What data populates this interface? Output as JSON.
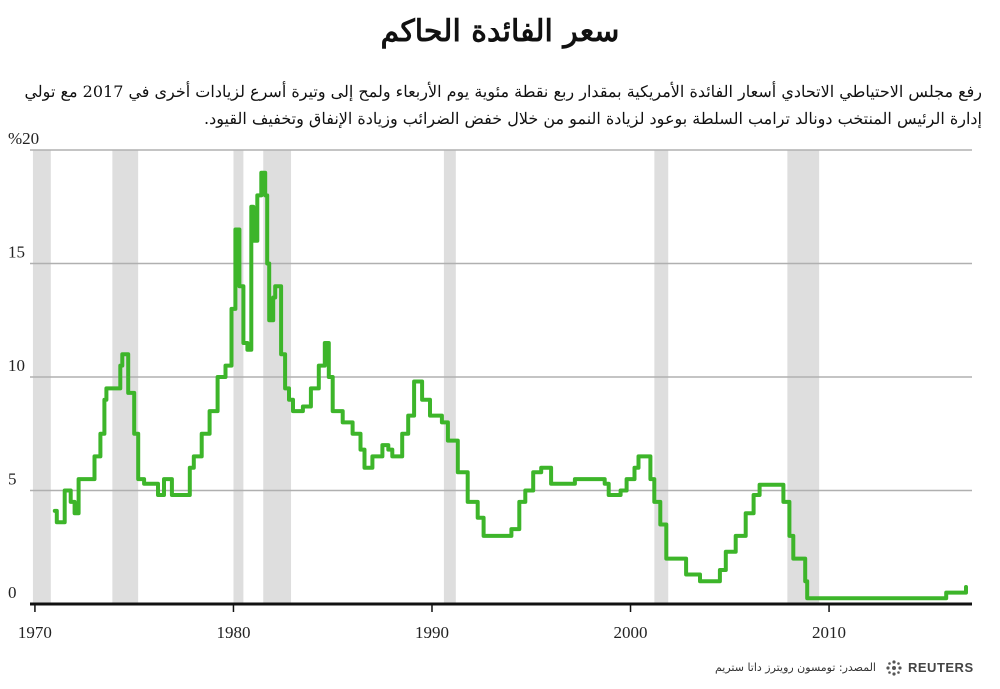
{
  "header": {
    "title": "سعر الفائدة الحاكم",
    "subtitle": "رفع مجلس الاحتياطي الاتحادي أسعار الفائدة الأمريكية بمقدار ربع نقطة مئوية يوم الأربعاء ولمح إلى وتيرة أسرع لزيادات أخرى في 2017 مع تولي إدارة الرئيس المنتخب دونالد ترامب السلطة بوعود لزيادة النمو من خلال خفض الضرائب وزيادة الإنفاق وتخفيف القيود."
  },
  "footer": {
    "source": "المصدر: تومسون رويترز داتا ستريم",
    "logo_text": "REUTERS"
  },
  "colors": {
    "line": "#3db52a",
    "recession": "#dedede",
    "grid": "#b0b0b0",
    "axis": "#111111"
  },
  "chart_data": {
    "type": "line",
    "title": "سعر الفائدة الحاكم",
    "xlabel": "",
    "ylabel": "",
    "xlim": [
      1969.5,
      2017.2
    ],
    "ylim": [
      0,
      20
    ],
    "x_ticks": [
      1970,
      1980,
      1990,
      2000,
      2010
    ],
    "x_tick_labels": [
      "1970",
      "1980",
      "1990",
      "2000",
      "2010"
    ],
    "y_ticks": [
      0,
      5,
      10,
      15,
      20
    ],
    "y_tick_labels": [
      "0",
      "5",
      "10",
      "15",
      "%20"
    ],
    "grid": "horizontal",
    "legend": "none",
    "recessions": [
      [
        1969.9,
        1970.8
      ],
      [
        1973.9,
        1975.2
      ],
      [
        1980.0,
        1980.5
      ],
      [
        1981.5,
        1982.9
      ],
      [
        1990.6,
        1991.2
      ],
      [
        2001.2,
        2001.9
      ],
      [
        2007.9,
        2009.5
      ]
    ],
    "series": [
      {
        "step": true,
        "points": [
          [
            1971.0,
            4.1
          ],
          [
            1971.1,
            3.6
          ],
          [
            1971.5,
            5.0
          ],
          [
            1971.8,
            4.5
          ],
          [
            1972.0,
            4.0
          ],
          [
            1972.2,
            5.5
          ],
          [
            1973.0,
            6.5
          ],
          [
            1973.3,
            7.5
          ],
          [
            1973.5,
            9.0
          ],
          [
            1973.6,
            9.5
          ],
          [
            1974.3,
            10.5
          ],
          [
            1974.4,
            11.0
          ],
          [
            1974.7,
            9.3
          ],
          [
            1975.0,
            7.5
          ],
          [
            1975.2,
            5.5
          ],
          [
            1975.5,
            5.3
          ],
          [
            1976.2,
            4.8
          ],
          [
            1976.5,
            5.5
          ],
          [
            1976.9,
            4.8
          ],
          [
            1977.8,
            6.0
          ],
          [
            1978.0,
            6.5
          ],
          [
            1978.4,
            7.5
          ],
          [
            1978.8,
            8.5
          ],
          [
            1979.2,
            10.0
          ],
          [
            1979.6,
            10.5
          ],
          [
            1979.9,
            13.0
          ],
          [
            1980.1,
            16.5
          ],
          [
            1980.3,
            14.0
          ],
          [
            1980.5,
            11.5
          ],
          [
            1980.7,
            11.2
          ],
          [
            1980.9,
            17.5
          ],
          [
            1981.0,
            16.0
          ],
          [
            1981.2,
            18.0
          ],
          [
            1981.4,
            19.0
          ],
          [
            1981.6,
            18.0
          ],
          [
            1981.7,
            15.0
          ],
          [
            1981.8,
            12.5
          ],
          [
            1982.0,
            13.5
          ],
          [
            1982.1,
            14.0
          ],
          [
            1982.4,
            11.0
          ],
          [
            1982.6,
            9.5
          ],
          [
            1982.8,
            9.0
          ],
          [
            1983.0,
            8.5
          ],
          [
            1983.5,
            8.7
          ],
          [
            1983.9,
            9.5
          ],
          [
            1984.3,
            10.5
          ],
          [
            1984.6,
            11.5
          ],
          [
            1984.8,
            10.0
          ],
          [
            1985.0,
            8.5
          ],
          [
            1985.5,
            8.0
          ],
          [
            1986.0,
            7.5
          ],
          [
            1986.4,
            6.8
          ],
          [
            1986.6,
            6.0
          ],
          [
            1987.0,
            6.5
          ],
          [
            1987.5,
            7.0
          ],
          [
            1987.8,
            6.8
          ],
          [
            1988.0,
            6.5
          ],
          [
            1988.5,
            7.5
          ],
          [
            1988.8,
            8.3
          ],
          [
            1989.1,
            9.8
          ],
          [
            1989.5,
            9.0
          ],
          [
            1989.9,
            8.3
          ],
          [
            1990.5,
            8.0
          ],
          [
            1990.8,
            7.2
          ],
          [
            1991.3,
            5.8
          ],
          [
            1991.8,
            4.5
          ],
          [
            1992.3,
            3.8
          ],
          [
            1992.6,
            3.0
          ],
          [
            1994.0,
            3.3
          ],
          [
            1994.4,
            4.5
          ],
          [
            1994.7,
            5.0
          ],
          [
            1995.1,
            5.8
          ],
          [
            1995.5,
            6.0
          ],
          [
            1996.0,
            5.3
          ],
          [
            1997.2,
            5.5
          ],
          [
            1998.7,
            5.3
          ],
          [
            1998.9,
            4.8
          ],
          [
            1999.5,
            5.0
          ],
          [
            1999.8,
            5.5
          ],
          [
            2000.2,
            6.0
          ],
          [
            2000.4,
            6.5
          ],
          [
            2001.0,
            5.5
          ],
          [
            2001.2,
            4.5
          ],
          [
            2001.5,
            3.5
          ],
          [
            2001.8,
            2.0
          ],
          [
            2002.8,
            1.3
          ],
          [
            2003.5,
            1.0
          ],
          [
            2004.5,
            1.5
          ],
          [
            2004.8,
            2.3
          ],
          [
            2005.3,
            3.0
          ],
          [
            2005.8,
            4.0
          ],
          [
            2006.2,
            4.8
          ],
          [
            2006.5,
            5.25
          ],
          [
            2007.7,
            4.5
          ],
          [
            2008.0,
            3.0
          ],
          [
            2008.2,
            2.0
          ],
          [
            2008.8,
            1.0
          ],
          [
            2008.9,
            0.25
          ],
          [
            2015.9,
            0.5
          ],
          [
            2016.9,
            0.75
          ]
        ]
      }
    ]
  }
}
